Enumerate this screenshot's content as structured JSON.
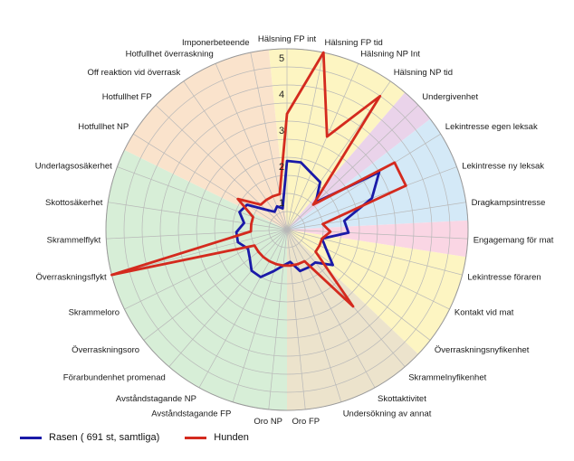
{
  "chart_data": {
    "type": "radar",
    "title": "",
    "rmax": 5,
    "radial_ticks": [
      1,
      2,
      3,
      4,
      5
    ],
    "radial_tick_labels": [
      "1",
      "2",
      "3",
      "4",
      "5"
    ],
    "grid": true,
    "legend_position": "bottom-left",
    "categories": [
      "Hälsning FP int",
      "Hälsning FP tid",
      "Hälsning NP Int",
      "Hälsning NP tid",
      "Undergivenhet",
      "Lekintresse egen leksak",
      "Lekintresse ny leksak",
      "Dragkampsintresse",
      "Engagemang för mat",
      "Lekintresse föraren",
      "Kontakt vid mat",
      "Överraskningsnyfikenhet",
      "Skrammelnyfikenhet",
      "Skottaktivitet",
      "Undersökning av annat",
      "Oro FP",
      "Oro NP",
      "Avståndstagande FP",
      "Avståndstagande NP",
      "Förarbundenhet promenad",
      "Överraskningsoro",
      "Skrammeloro",
      "Överraskningsflykt",
      "Skrammelflykt",
      "Skottosäkerhet",
      "Underlagsosäkerhet",
      "Hotfullhet NP",
      "Hotfullhet FP",
      "Off reaktion vid överrask",
      "Hotfullhet överraskning",
      "Imponerbeteende"
    ],
    "sectors": [
      {
        "from": "Hälsning FP int",
        "to": "Hälsning NP tid",
        "color": "#fdf5c2"
      },
      {
        "from": "Undergivenhet",
        "to": "Undergivenhet",
        "color": "#ead3ea"
      },
      {
        "from": "Lekintresse egen leksak",
        "to": "Dragkampsintresse",
        "color": "#d4e9f7"
      },
      {
        "from": "Engagemang för mat",
        "to": "Engagemang för mat",
        "color": "#fad6e4"
      },
      {
        "from": "Lekintresse föraren",
        "to": "Överraskningsnyfikenhet",
        "color": "#fdf5c2"
      },
      {
        "from": "Skrammelnyfikenhet",
        "to": "Oro FP",
        "color": "#ece3cc"
      },
      {
        "from": "Oro NP",
        "to": "Underlagsosäkerhet",
        "color": "#d7eed7"
      },
      {
        "from": "Hotfullhet NP",
        "to": "Imponerbeteende",
        "color": "#fae3cc"
      }
    ],
    "series": [
      {
        "name": "Rasen ( 691 st, samtliga)",
        "color": "#1a1aa8",
        "values": [
          1.9,
          1.9,
          1.7,
          1.6,
          1.1,
          3.0,
          2.5,
          1.6,
          1.7,
          1.0,
          1.2,
          1.6,
          1.2,
          1.2,
          1.2,
          0.9,
          1.0,
          1.2,
          1.5,
          1.5,
          1.3,
          1.2,
          1.4,
          1.4,
          1.2,
          1.4,
          1.3,
          0.8,
          0.6,
          0.7,
          0.6
        ]
      },
      {
        "name": "Hunden",
        "color": "#d42a1e",
        "values": [
          3.2,
          5.0,
          2.8,
          4.5,
          1.0,
          3.5,
          3.5,
          1.0,
          1.2,
          1.0,
          1.0,
          1.0,
          2.8,
          1.0,
          1.0,
          1.0,
          1.0,
          1.0,
          1.0,
          1.0,
          1.0,
          1.0,
          5.0,
          1.0,
          1.0,
          1.0,
          1.6,
          1.0,
          1.0,
          1.0,
          1.0
        ]
      }
    ]
  },
  "legend": {
    "items": [
      {
        "label": "Rasen ( 691 st, samtliga)",
        "color": "#1a1aa8"
      },
      {
        "label": "Hunden",
        "color": "#d42a1e"
      }
    ]
  }
}
